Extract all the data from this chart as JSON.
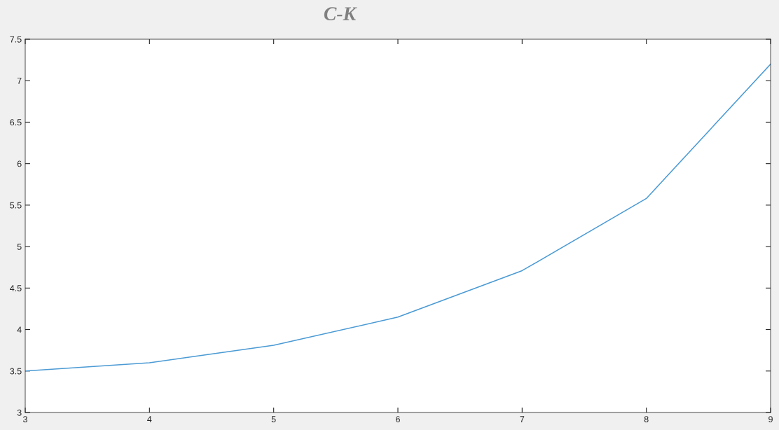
{
  "chart_data": {
    "type": "line",
    "title": "C-K",
    "x": [
      3,
      4,
      5,
      6,
      7,
      8,
      9
    ],
    "series": [
      {
        "color": "#4a9ad4",
        "values": [
          3.5,
          3.6,
          3.81,
          4.15,
          4.71,
          5.58,
          7.2
        ]
      }
    ],
    "xlim": [
      3,
      9
    ],
    "xticks": [
      3,
      4,
      5,
      6,
      7,
      8,
      9
    ],
    "ylim": [
      3,
      7.5
    ],
    "yticks": [
      3,
      3.5,
      4,
      4.5,
      5,
      5.5,
      6,
      6.5,
      7,
      7.5
    ],
    "grid": false,
    "legend": false,
    "marker": "none",
    "line_style": "solid"
  }
}
